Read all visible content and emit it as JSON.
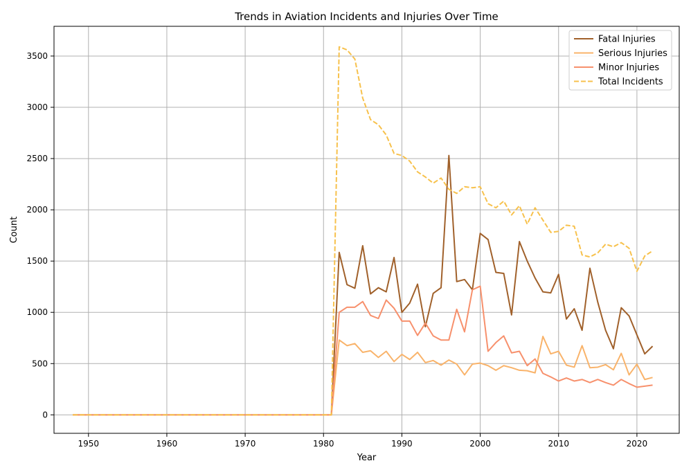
{
  "chart_data": {
    "type": "line",
    "title": "Trends in Aviation Incidents and Injuries Over Time",
    "xlabel": "Year",
    "ylabel": "Count",
    "xlim": [
      1945.6,
      2025.4
    ],
    "ylim": [
      -180,
      3790
    ],
    "xticks": [
      1950,
      1960,
      1970,
      1980,
      1990,
      2000,
      2010,
      2020
    ],
    "yticks": [
      0,
      500,
      1000,
      1500,
      2000,
      2500,
      3000,
      3500
    ],
    "grid": true,
    "legend_position": "top-right",
    "x": [
      1948,
      1981,
      1982,
      1983,
      1984,
      1985,
      1986,
      1987,
      1988,
      1989,
      1990,
      1991,
      1992,
      1993,
      1994,
      1995,
      1996,
      1997,
      1998,
      1999,
      2000,
      2001,
      2002,
      2003,
      2004,
      2005,
      2006,
      2007,
      2008,
      2009,
      2010,
      2011,
      2012,
      2013,
      2014,
      2015,
      2016,
      2017,
      2018,
      2019,
      2020,
      2021,
      2022
    ],
    "series": [
      {
        "name": "Fatal Injuries",
        "color": "#a0602a",
        "dash": "solid",
        "values": [
          0,
          0,
          1585,
          1270,
          1235,
          1650,
          1180,
          1240,
          1200,
          1535,
          1000,
          1090,
          1275,
          860,
          1185,
          1240,
          2530,
          1300,
          1320,
          1220,
          1770,
          1710,
          1390,
          1380,
          975,
          1690,
          1500,
          1335,
          1200,
          1190,
          1370,
          935,
          1035,
          825,
          1430,
          1100,
          825,
          645,
          1045,
          965,
          780,
          595,
          670
        ]
      },
      {
        "name": "Serious Injuries",
        "color": "#f9b36a",
        "dash": "solid",
        "values": [
          0,
          0,
          730,
          675,
          695,
          610,
          625,
          560,
          620,
          520,
          590,
          540,
          610,
          510,
          530,
          485,
          535,
          495,
          390,
          495,
          505,
          480,
          435,
          480,
          460,
          435,
          430,
          410,
          765,
          595,
          620,
          485,
          465,
          675,
          460,
          465,
          490,
          440,
          600,
          390,
          495,
          345,
          365
        ]
      },
      {
        "name": "Minor Injuries",
        "color": "#f7906c",
        "dash": "solid",
        "values": [
          0,
          0,
          1000,
          1050,
          1050,
          1105,
          970,
          940,
          1120,
          1040,
          915,
          915,
          775,
          895,
          770,
          730,
          730,
          1030,
          810,
          1220,
          1255,
          620,
          705,
          770,
          605,
          620,
          480,
          545,
          405,
          370,
          330,
          360,
          330,
          345,
          315,
          345,
          315,
          290,
          345,
          305,
          270,
          280,
          290
        ]
      },
      {
        "name": "Total Incidents",
        "color": "#f7c14c",
        "dash": "dashed",
        "values": [
          0,
          0,
          3590,
          3560,
          3470,
          3090,
          2880,
          2830,
          2730,
          2550,
          2530,
          2475,
          2370,
          2320,
          2260,
          2310,
          2200,
          2160,
          2225,
          2215,
          2225,
          2060,
          2020,
          2085,
          1950,
          2040,
          1860,
          2020,
          1900,
          1780,
          1790,
          1850,
          1840,
          1560,
          1540,
          1580,
          1665,
          1640,
          1680,
          1625,
          1400,
          1550,
          1600
        ]
      }
    ]
  }
}
